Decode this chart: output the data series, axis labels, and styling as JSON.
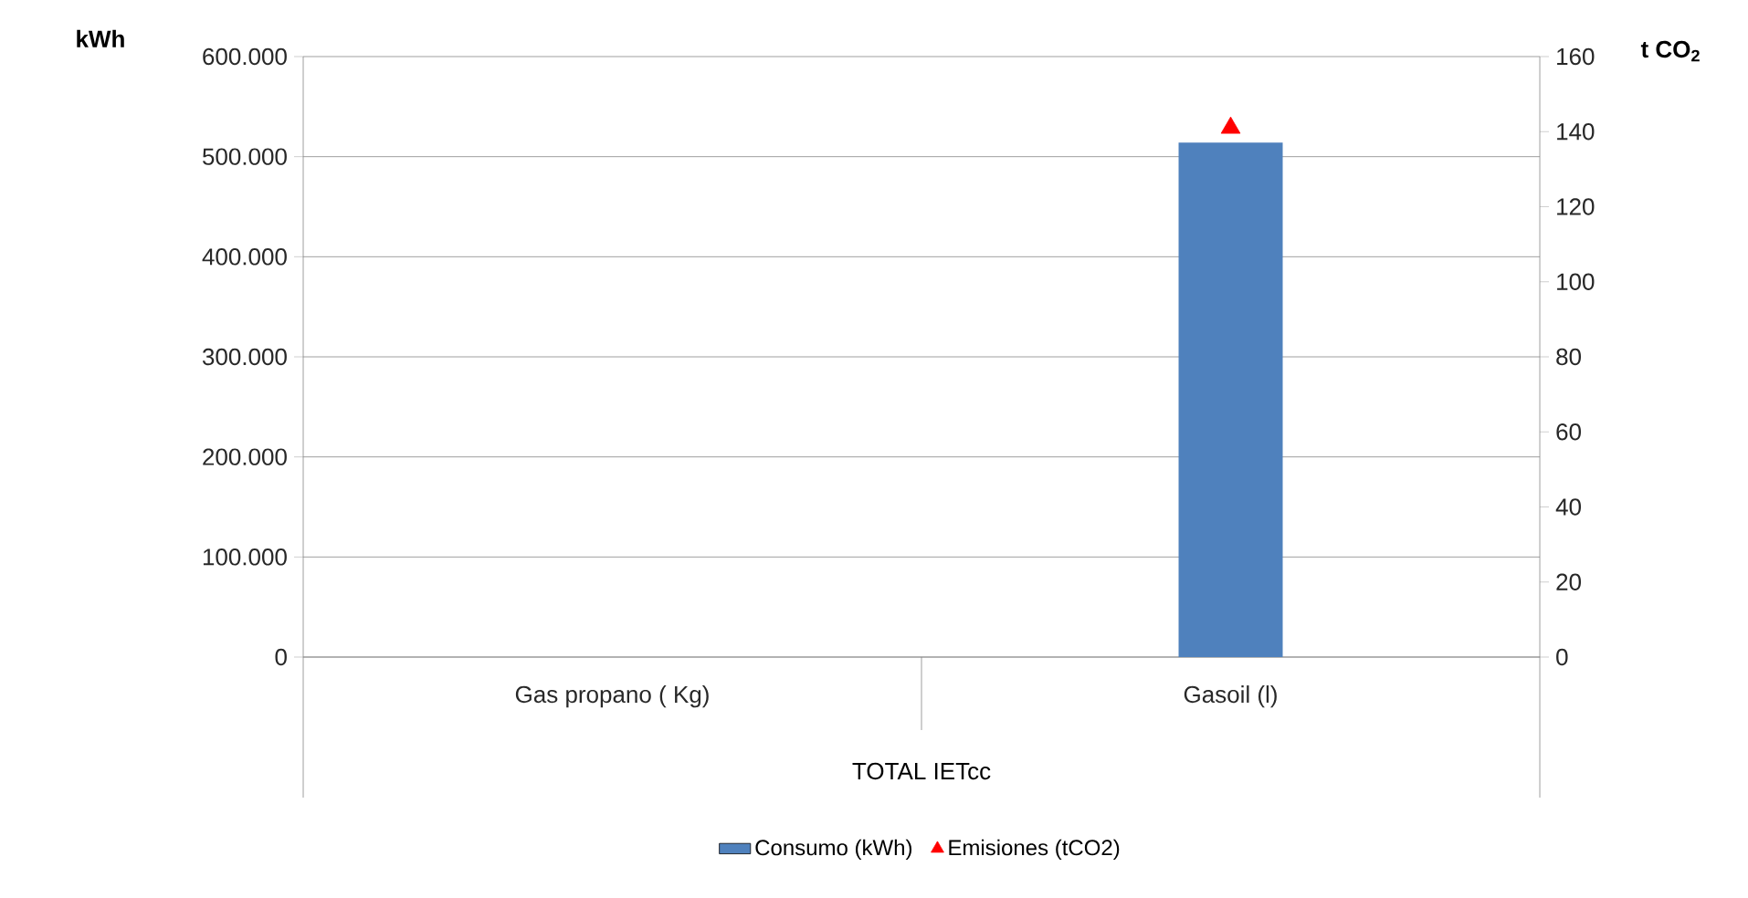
{
  "chart_data": {
    "type": "bar",
    "categories": [
      "Gas propano ( Kg)",
      "Gasoil (l)"
    ],
    "xlabel": "TOTAL IETcc",
    "ylabel": "kWh",
    "y2label": "t CO$_{2}$",
    "series": [
      {
        "name": "Consumo  (kWh)",
        "color": "#4f81bd",
        "values": [
          null,
          514000
        ]
      },
      {
        "name": "Emisiones (tCO2)",
        "type": "scatter",
        "axis": "y2",
        "marker": "triangle",
        "color": "#ff0000",
        "values": [
          null,
          141
        ]
      }
    ],
    "ylim": [
      0,
      600000
    ],
    "yticks": [
      {
        "value": 0,
        "label": "0"
      },
      {
        "value": 100000,
        "label": "100.000"
      },
      {
        "value": 200000,
        "label": "200.000"
      },
      {
        "value": 300000,
        "label": "300.000"
      },
      {
        "value": 400000,
        "label": "400.000"
      },
      {
        "value": 500000,
        "label": "500.000"
      },
      {
        "value": 600000,
        "label": "600.000"
      }
    ],
    "y2lim": [
      0,
      160
    ],
    "y2ticks": [
      0,
      20,
      40,
      60,
      80,
      100,
      120,
      140,
      160
    ],
    "grid": "y",
    "legend": "bottom"
  }
}
